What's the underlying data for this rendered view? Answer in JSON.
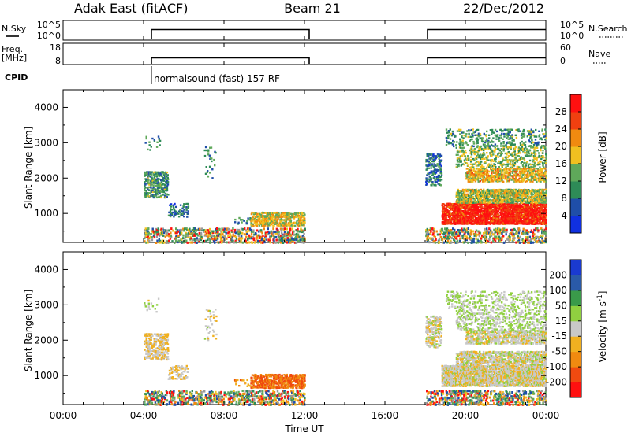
{
  "header": {
    "station": "Adak East (fitACF)",
    "beam": "Beam 21",
    "date": "22/Dec/2012"
  },
  "top_panels": {
    "nsky_label": "N.Sky",
    "nsky_ticks": [
      "10^5",
      "10^0"
    ],
    "nsearch_label": "N.Search",
    "nsearch_ticks": [
      "10^5",
      "10^0"
    ],
    "freq_label_line1": "Freq.",
    "freq_label_line2": "[MHz]",
    "freq_ticks": [
      "18",
      "8"
    ],
    "nave_label": "Nave",
    "nave_ticks": [
      "60",
      "0"
    ],
    "cpid_label": "CPID",
    "cpid_text": "normalsound (fast) 157 RF"
  },
  "colors": {
    "power_scale": [
      "#1030e0",
      "#1f4ea8",
      "#2e8b57",
      "#5fa85a",
      "#f0c020",
      "#f08a10",
      "#f04010",
      "#ff1010"
    ],
    "velocity_scale": [
      "#ff1010",
      "#f04a10",
      "#f08a10",
      "#f0b020",
      "#c8c8c8",
      "#90d040",
      "#3a9a4a",
      "#2a5aa8",
      "#1a3ad0"
    ],
    "noise": [
      "#2e8b57",
      "#f08a10",
      "#1f4ea8",
      "#ff1010",
      "#5fa85a",
      "#f0c020",
      "#9a9a9a"
    ]
  },
  "chart_data": [
    {
      "type": "heatmap",
      "title": "Power",
      "ylabel": "Slant Range [km]",
      "ylim": [
        180,
        4500
      ],
      "y_ticks": [
        "4000",
        "3000",
        "2000",
        "1000"
      ],
      "colorbar_label": "Power [dB]",
      "colorbar_ticks": [
        "28",
        "24",
        "20",
        "16",
        "12",
        "8",
        "4"
      ],
      "colorbar_range": [
        0,
        32
      ]
    },
    {
      "type": "heatmap",
      "title": "Velocity",
      "ylabel": "Slant Range [km]",
      "ylim": [
        180,
        4500
      ],
      "y_ticks": [
        "4000",
        "3000",
        "2000",
        "1000"
      ],
      "colorbar_label": "Velocity [m s",
      "colorbar_label_sup": "-1",
      "colorbar_label_close": "]",
      "colorbar_ticks": [
        "200",
        "100",
        "50",
        "15",
        "-15",
        "-50",
        "-100",
        "-200"
      ]
    }
  ],
  "x_axis": {
    "label": "Time UT",
    "tick_labels": [
      "00:00",
      "04:00",
      "08:00",
      "12:00",
      "16:00",
      "20:00",
      "00:00"
    ],
    "tick_hours": [
      0,
      4,
      8,
      12,
      16,
      20,
      24
    ]
  }
}
